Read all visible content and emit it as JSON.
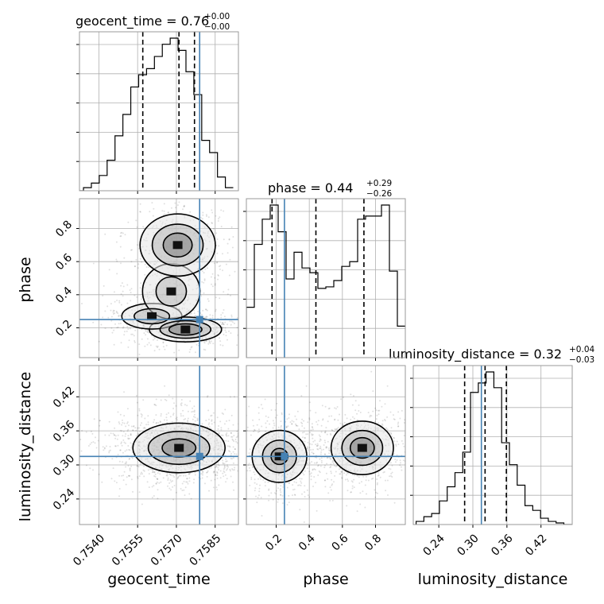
{
  "chart_data": {
    "type": "corner",
    "parameters": [
      "geocent_time",
      "phase",
      "luminosity_distance"
    ],
    "axis_labels": {
      "geocent_time": "geocent_time",
      "phase": "phase",
      "luminosity_distance": "luminosity_distance"
    },
    "ranges": {
      "geocent_time": [
        0.75325,
        0.7594
      ],
      "phase": [
        0.02,
        0.98
      ],
      "luminosity_distance": [
        0.195,
        0.475
      ]
    },
    "ticks": {
      "geocent_time": {
        "values": [
          0.754,
          0.7555,
          0.757,
          0.7585
        ],
        "labels": [
          "0.7540",
          "0.7555",
          "0.7570",
          "0.7585"
        ]
      },
      "phase": {
        "values": [
          0.2,
          0.4,
          0.6,
          0.8
        ],
        "labels": [
          "0.2",
          "0.4",
          "0.6",
          "0.8"
        ]
      },
      "luminosity_distance": {
        "values": [
          0.24,
          0.3,
          0.36,
          0.42
        ],
        "labels": [
          "0.24",
          "0.30",
          "0.36",
          "0.42"
        ]
      }
    },
    "truths": {
      "geocent_time": 0.7579,
      "phase": 0.25,
      "luminosity_distance": 0.315
    },
    "truth_color": "#4682b4",
    "titles": [
      {
        "param": "geocent_time",
        "text": "geocent_time = 0.76",
        "plus": "+0.00",
        "minus": "−0.00"
      },
      {
        "param": "phase",
        "text": "phase = 0.44",
        "plus": "+0.29",
        "minus": "−0.26"
      },
      {
        "param": "luminosity_distance",
        "text": "luminosity_distance = 0.32",
        "plus": "+0.04",
        "minus": "−0.03"
      }
    ],
    "histograms": {
      "geocent_time": {
        "edges_start": 0.7531,
        "bin_width": 0.000305,
        "counts": [
          0,
          2,
          5,
          10,
          20,
          36,
          50,
          68,
          76,
          80,
          88,
          96,
          100,
          92,
          78,
          63,
          33,
          25,
          9,
          2
        ],
        "quantiles": [
          0.7557,
          0.7571,
          0.7577
        ]
      },
      "phase": {
        "edges_start": 0.02,
        "bin_width": 0.048,
        "counts": [
          32,
          72,
          88,
          97,
          80,
          50,
          67,
          57,
          54,
          44,
          45,
          49,
          58,
          61,
          88,
          90,
          90,
          97,
          55,
          20
        ],
        "quantiles": [
          0.175,
          0.44,
          0.73
        ]
      },
      "luminosity_distance": {
        "edges_start": 0.2,
        "bin_width": 0.0137,
        "counts": [
          2,
          5,
          7,
          15,
          24,
          33,
          46,
          84,
          90,
          97,
          87,
          52,
          38,
          25,
          12,
          9,
          4,
          2,
          1,
          0
        ],
        "quantiles": [
          0.2855,
          0.3215,
          0.359
        ]
      }
    },
    "joint_densities": [
      {
        "x": "geocent_time",
        "y": "phase",
        "modes": [
          {
            "cx": 0.75735,
            "cy": 0.19,
            "sx": 0.00065,
            "sy": 0.035,
            "w": 1.0
          },
          {
            "cx": 0.75605,
            "cy": 0.27,
            "sx": 0.0006,
            "sy": 0.04,
            "w": 0.6
          },
          {
            "cx": 0.7568,
            "cy": 0.42,
            "sx": 0.0006,
            "sy": 0.09,
            "w": 0.5
          },
          {
            "cx": 0.75705,
            "cy": 0.7,
            "sx": 0.0007,
            "sy": 0.09,
            "w": 0.85
          }
        ],
        "contour_levels": [
          0.08,
          0.3,
          0.6
        ]
      },
      {
        "x": "geocent_time",
        "y": "luminosity_distance",
        "modes": [
          {
            "cx": 0.7571,
            "cy": 0.33,
            "sx": 0.0009,
            "sy": 0.022,
            "w": 1.0
          }
        ],
        "contour_levels": [
          0.12,
          0.4,
          0.75
        ]
      },
      {
        "x": "phase",
        "y": "luminosity_distance",
        "modes": [
          {
            "cx": 0.22,
            "cy": 0.315,
            "sx": 0.09,
            "sy": 0.025,
            "w": 0.9
          },
          {
            "cx": 0.72,
            "cy": 0.33,
            "sx": 0.1,
            "sy": 0.025,
            "w": 1.0
          }
        ],
        "contour_levels": [
          0.15,
          0.45,
          0.75
        ]
      }
    ],
    "grid": true
  }
}
